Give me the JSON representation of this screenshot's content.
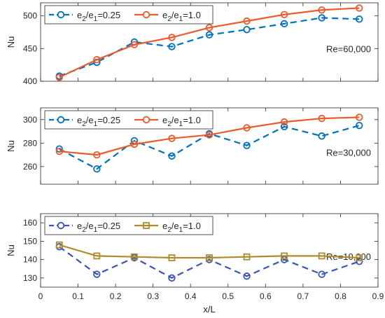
{
  "chart_data": [
    {
      "type": "line",
      "annotation": "Re=60,000",
      "ylabel": "Nu",
      "xlabel": "",
      "xlim": [
        0,
        0.9
      ],
      "ylim": [
        400,
        520
      ],
      "yticks": [
        400,
        450,
        500
      ],
      "x": [
        0.05,
        0.15,
        0.25,
        0.35,
        0.45,
        0.55,
        0.65,
        0.75,
        0.85
      ],
      "series": [
        {
          "name_main": "e",
          "name_sub1": "2",
          "name_mid": "/e",
          "name_sub2": "1",
          "name_tail": "=0.25",
          "color": "#0072BD",
          "dash": true,
          "marker": "circle",
          "values": [
            408,
            429,
            460,
            453,
            471,
            479,
            488,
            497,
            495
          ]
        },
        {
          "name_main": "e",
          "name_sub1": "2",
          "name_mid": "/e",
          "name_sub2": "1",
          "name_tail": "=1.0",
          "color": "#EB5A2A",
          "dash": false,
          "marker": "circle",
          "values": [
            406,
            433,
            456,
            467,
            482,
            492,
            502,
            509,
            512
          ]
        }
      ]
    },
    {
      "type": "line",
      "annotation": "Re=30,000",
      "ylabel": "Nu",
      "xlabel": "",
      "xlim": [
        0,
        0.9
      ],
      "ylim": [
        245,
        310
      ],
      "yticks": [
        260,
        280,
        300
      ],
      "x": [
        0.05,
        0.15,
        0.25,
        0.35,
        0.45,
        0.55,
        0.65,
        0.75,
        0.85
      ],
      "series": [
        {
          "name_main": "e",
          "name_sub1": "2",
          "name_mid": "/e",
          "name_sub2": "1",
          "name_tail": "=0.25",
          "color": "#0072BD",
          "dash": true,
          "marker": "circle",
          "values": [
            275,
            258,
            282,
            269,
            288,
            278,
            294,
            286,
            295
          ]
        },
        {
          "name_main": "e",
          "name_sub1": "2",
          "name_mid": "/e",
          "name_sub2": "1",
          "name_tail": "=1.0",
          "color": "#EB5A2A",
          "dash": false,
          "marker": "circle",
          "values": [
            273,
            270,
            279,
            284,
            287,
            293,
            298,
            301,
            302
          ]
        }
      ]
    },
    {
      "type": "line",
      "annotation": "Re=10,000",
      "ylabel": "Nu",
      "xlabel": "x/L",
      "xlim": [
        0,
        0.9
      ],
      "ylim": [
        125,
        165
      ],
      "yticks": [
        130,
        140,
        150,
        160
      ],
      "xticks": [
        0,
        0.1,
        0.2,
        0.3,
        0.4,
        0.5,
        0.6,
        0.7,
        0.8,
        0.9
      ],
      "xtick_labels": [
        "0",
        "0.1",
        "0.2",
        "0.3",
        "0.4",
        "0.5",
        "0.6",
        "0.7",
        "0.8",
        "0.9"
      ],
      "x": [
        0.05,
        0.15,
        0.25,
        0.35,
        0.45,
        0.55,
        0.65,
        0.75,
        0.85
      ],
      "series": [
        {
          "name_main": "e",
          "name_sub1": "2",
          "name_mid": "/e",
          "name_sub2": "1",
          "name_tail": "=0.25",
          "color": "#3A55B8",
          "dash": true,
          "marker": "circle",
          "values": [
            147,
            132,
            141,
            130,
            140,
            131,
            140,
            132,
            139
          ]
        },
        {
          "name_main": "e",
          "name_sub1": "2",
          "name_mid": "/e",
          "name_sub2": "1",
          "name_tail": "=1.0",
          "color": "#B08A2E",
          "dash": false,
          "marker": "square",
          "values": [
            148,
            142,
            141.5,
            141,
            141,
            141.5,
            142,
            142,
            141
          ]
        }
      ]
    }
  ]
}
